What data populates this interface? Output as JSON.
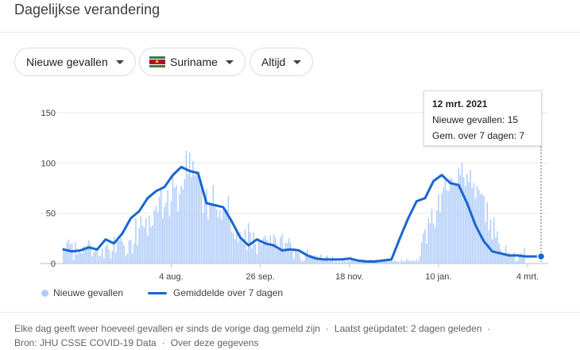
{
  "page": {
    "title": "Dagelijkse verandering"
  },
  "filters": [
    {
      "label": "Nieuwe gevallen",
      "has_flag": false
    },
    {
      "label": "Suriname",
      "has_flag": true
    },
    {
      "label": "Altijd",
      "has_flag": false
    }
  ],
  "tooltip": {
    "date": "12 mrt. 2021",
    "line1": "Nieuwe gevallen: 15",
    "line2": "Gem. over 7 dagen: 7"
  },
  "legend": {
    "bars_label": "Nieuwe gevallen",
    "line_label": "Gemiddelde over 7 dagen"
  },
  "footer": {
    "text1": "Elke dag geeft weer hoeveel gevallen er sinds de vorige dag gemeld zijn",
    "text2": "Laatst geüpdatet: 2 dagen geleden",
    "text3": "Bron: JHU CSSE COVID-19 Data",
    "text4": "Over deze gegevens"
  },
  "colors": {
    "bar": "#aecbfa",
    "line": "#1a66d0",
    "grid": "#e8eaed"
  },
  "chart_data": {
    "type": "bar",
    "x_start": "2020-06-01",
    "x_end": "2021-03-12",
    "ylim": [
      0,
      150
    ],
    "yticks": [
      0,
      50,
      100,
      150
    ],
    "xticks": [
      {
        "date": "2020-08-04",
        "label": "4 aug."
      },
      {
        "date": "2020-09-26",
        "label": "26 sep."
      },
      {
        "date": "2020-11-18",
        "label": "18 nov."
      },
      {
        "date": "2021-01-10",
        "label": "10 jan."
      },
      {
        "date": "2021-03-04",
        "label": "4 mrt."
      }
    ],
    "grid": true,
    "bars_series_name": "Nieuwe gevallen",
    "line_series_name": "Gemiddelde over 7 dagen",
    "line_points": [
      [
        "2020-06-01",
        14
      ],
      [
        "2020-06-06",
        12
      ],
      [
        "2020-06-11",
        13
      ],
      [
        "2020-06-16",
        16
      ],
      [
        "2020-06-21",
        14
      ],
      [
        "2020-06-26",
        24
      ],
      [
        "2020-07-01",
        20
      ],
      [
        "2020-07-06",
        30
      ],
      [
        "2020-07-11",
        45
      ],
      [
        "2020-07-16",
        52
      ],
      [
        "2020-07-21",
        65
      ],
      [
        "2020-07-26",
        72
      ],
      [
        "2020-07-31",
        76
      ],
      [
        "2020-08-05",
        88
      ],
      [
        "2020-08-10",
        96
      ],
      [
        "2020-08-15",
        92
      ],
      [
        "2020-08-20",
        90
      ],
      [
        "2020-08-25",
        60
      ],
      [
        "2020-08-30",
        58
      ],
      [
        "2020-09-04",
        56
      ],
      [
        "2020-09-09",
        42
      ],
      [
        "2020-09-14",
        26
      ],
      [
        "2020-09-19",
        18
      ],
      [
        "2020-09-24",
        24
      ],
      [
        "2020-09-29",
        20
      ],
      [
        "2020-10-04",
        18
      ],
      [
        "2020-10-09",
        13
      ],
      [
        "2020-10-14",
        14
      ],
      [
        "2020-10-19",
        13
      ],
      [
        "2020-10-24",
        8
      ],
      [
        "2020-10-29",
        5
      ],
      [
        "2020-11-03",
        4
      ],
      [
        "2020-11-08",
        4
      ],
      [
        "2020-11-13",
        4
      ],
      [
        "2020-11-18",
        5
      ],
      [
        "2020-11-23",
        3
      ],
      [
        "2020-11-28",
        2
      ],
      [
        "2020-12-03",
        2
      ],
      [
        "2020-12-08",
        3
      ],
      [
        "2020-12-13",
        4
      ],
      [
        "2020-12-18",
        25
      ],
      [
        "2020-12-23",
        45
      ],
      [
        "2020-12-28",
        62
      ],
      [
        "2021-01-02",
        65
      ],
      [
        "2021-01-07",
        82
      ],
      [
        "2021-01-12",
        88
      ],
      [
        "2021-01-17",
        80
      ],
      [
        "2021-01-22",
        78
      ],
      [
        "2021-01-27",
        60
      ],
      [
        "2021-02-01",
        38
      ],
      [
        "2021-02-06",
        22
      ],
      [
        "2021-02-11",
        12
      ],
      [
        "2021-02-16",
        10
      ],
      [
        "2021-02-21",
        8
      ],
      [
        "2021-02-26",
        8
      ],
      [
        "2021-03-03",
        7
      ],
      [
        "2021-03-08",
        7
      ],
      [
        "2021-03-12",
        7
      ]
    ],
    "bars": [
      16,
      12,
      21,
      24,
      19,
      20,
      3,
      21,
      9,
      12,
      11,
      10,
      17,
      16,
      18,
      23,
      19,
      7,
      11,
      13,
      14,
      7,
      8,
      15,
      5,
      17,
      19,
      14,
      5,
      13,
      27,
      11,
      25,
      23,
      25,
      22,
      18,
      8,
      10,
      23,
      24,
      10,
      20,
      45,
      18,
      35,
      47,
      38,
      36,
      45,
      28,
      48,
      36,
      38,
      53,
      57,
      51,
      66,
      73,
      45,
      56,
      61,
      73,
      47,
      62,
      86,
      75,
      78,
      52,
      69,
      77,
      74,
      84,
      112,
      89,
      110,
      86,
      102,
      88,
      90,
      88,
      84,
      78,
      50,
      64,
      74,
      44,
      58,
      60,
      78,
      57,
      54,
      46,
      53,
      44,
      56,
      52,
      54,
      67,
      46,
      32,
      30,
      24,
      34,
      22,
      31,
      23,
      23,
      34,
      14,
      40,
      31,
      15,
      31,
      19,
      9,
      22,
      22,
      19,
      26,
      28,
      24,
      18,
      28,
      20,
      29,
      26,
      14,
      14,
      26,
      29,
      14,
      21,
      20,
      25,
      21,
      14,
      5,
      15,
      11,
      14,
      4,
      2,
      3,
      11,
      14,
      7,
      9,
      8,
      8,
      8,
      7,
      6,
      9,
      4,
      3,
      7,
      8,
      2,
      5,
      7,
      1,
      5,
      1,
      4,
      1,
      5,
      3,
      2,
      5,
      2,
      7,
      4,
      5,
      4,
      4,
      3,
      2,
      4,
      4,
      3,
      3,
      4,
      4,
      3,
      3,
      4,
      2,
      3,
      4,
      2,
      3,
      3,
      2,
      4,
      3,
      2,
      3,
      2,
      2,
      1,
      4,
      2,
      2,
      4,
      3,
      3,
      2,
      3,
      2,
      4,
      2,
      7,
      21,
      30,
      34,
      20,
      45,
      40,
      54,
      40,
      36,
      53,
      69,
      51,
      70,
      76,
      83,
      73,
      72,
      85,
      84,
      78,
      79,
      80,
      95,
      88,
      100,
      86,
      77,
      89,
      81,
      93,
      75,
      80,
      65,
      77,
      73,
      69,
      69,
      67,
      41,
      61,
      33,
      44,
      24,
      46,
      26,
      32,
      20,
      14,
      9,
      10,
      18,
      10,
      11,
      7,
      8,
      11,
      2,
      3,
      8,
      10,
      7,
      15
    ]
  }
}
